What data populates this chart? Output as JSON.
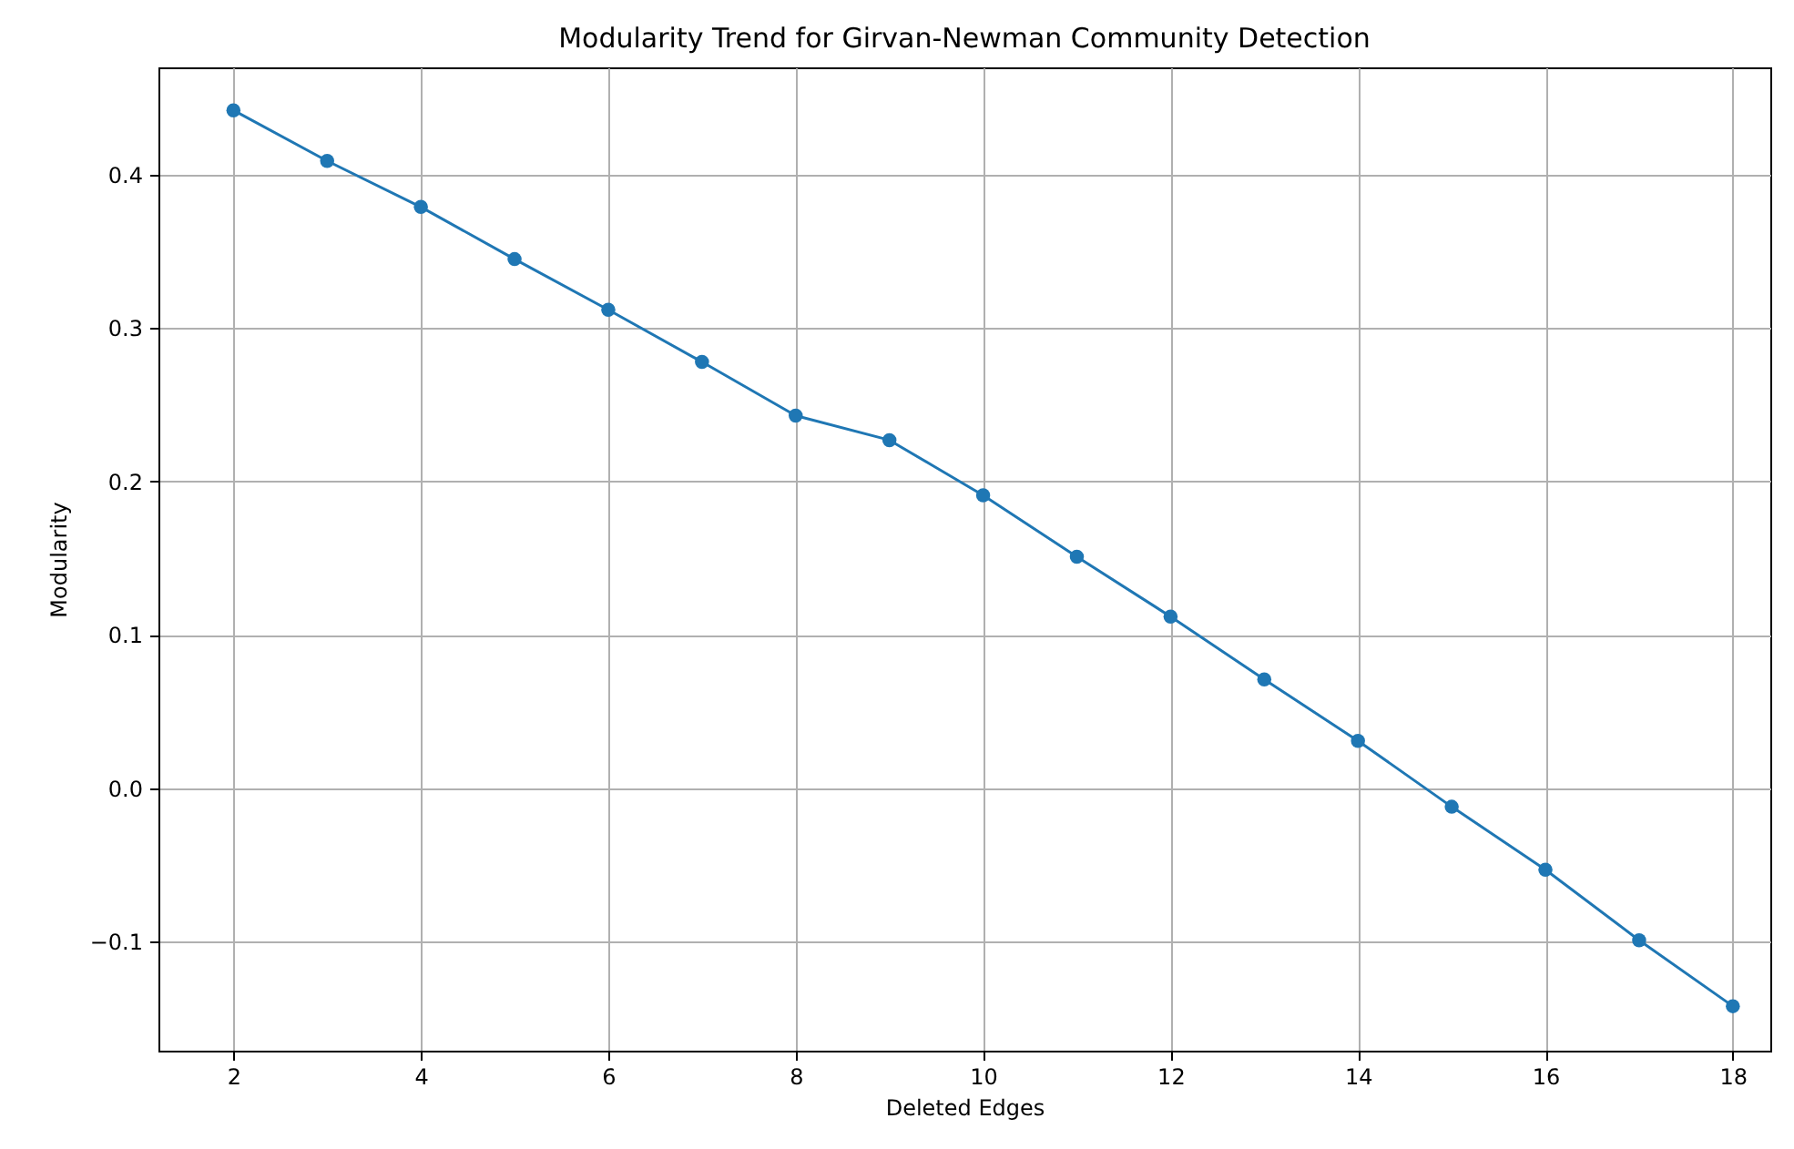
{
  "chart_data": {
    "type": "line",
    "title": "Modularity Trend for Girvan-Newman Community Detection",
    "xlabel": "Deleted Edges",
    "ylabel": "Modularity",
    "x": [
      2,
      3,
      4,
      5,
      6,
      7,
      8,
      9,
      10,
      11,
      12,
      13,
      14,
      15,
      16,
      17,
      18
    ],
    "series": [
      {
        "color": "#1f77b4",
        "values": [
          0.442,
          0.409,
          0.379,
          0.345,
          0.312,
          0.278,
          0.243,
          0.227,
          0.191,
          0.151,
          0.112,
          0.071,
          0.031,
          -0.012,
          -0.053,
          -0.099,
          -0.142
        ]
      }
    ],
    "xlim": [
      1.2,
      18.4
    ],
    "xticks": [
      2,
      4,
      6,
      8,
      10,
      12,
      14,
      16,
      18
    ],
    "ylim": [
      -0.171,
      0.47
    ],
    "yticks": [
      {
        "value": -0.1,
        "label": "−0.1"
      },
      {
        "value": 0,
        "label": "0.0"
      },
      {
        "value": 0.1,
        "label": "0.1"
      },
      {
        "value": 0.2,
        "label": "0.2"
      },
      {
        "value": 0.3,
        "label": "0.3"
      },
      {
        "value": 0.4,
        "label": "0.4"
      }
    ],
    "grid": true,
    "marker": "circle",
    "line_style": "solid"
  }
}
